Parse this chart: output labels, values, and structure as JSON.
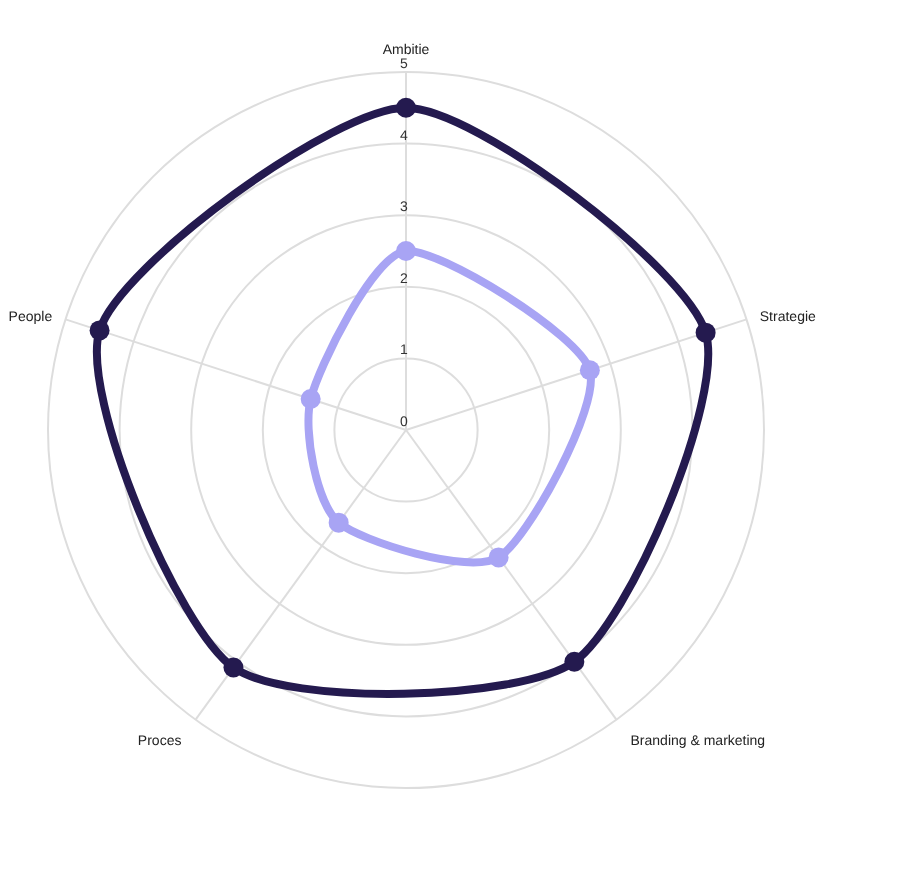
{
  "chart_data": {
    "type": "radar",
    "categories": [
      "Ambitie",
      "Strategie",
      "Branding & marketing",
      "Proces",
      "People"
    ],
    "series": [
      {
        "color": "#241a4f",
        "values": [
          4.5,
          4.4,
          4.0,
          4.1,
          4.5
        ]
      },
      {
        "color": "#a8a4f4",
        "values": [
          2.5,
          2.7,
          2.2,
          1.6,
          1.4
        ]
      }
    ],
    "ylim": [
      0,
      5
    ],
    "yticks": [
      0,
      1,
      2,
      3,
      4,
      5
    ],
    "grid": true,
    "marker": "circle"
  }
}
